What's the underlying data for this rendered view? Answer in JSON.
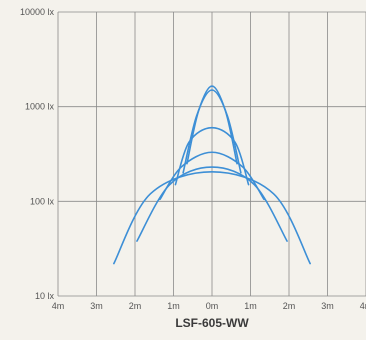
{
  "chart_data": {
    "type": "line",
    "title": "LSF-605-WW",
    "xlabel": "",
    "ylabel": "",
    "x_ticks": [
      "4m",
      "3m",
      "2m",
      "1m",
      "0m",
      "1m",
      "2m",
      "3m",
      "4m"
    ],
    "x_tick_values": [
      -4,
      -3,
      -2,
      -1,
      0,
      1,
      2,
      3,
      4
    ],
    "y_ticks": [
      "10000 lx",
      "1000 lx",
      "100 lx",
      "10 lx"
    ],
    "y_tick_values": [
      10000,
      1000,
      100,
      10
    ],
    "xlim": [
      -4,
      4
    ],
    "ylim": [
      10,
      10000
    ],
    "y_scale": "log",
    "grid": true,
    "line_color": "#3d8fd6",
    "grid_color": "#8a8a8a",
    "series": [
      {
        "values": [
          [
            -0.65,
            250
          ],
          [
            -0.35,
            900
          ],
          [
            0,
            1650
          ],
          [
            0.35,
            900
          ],
          [
            0.65,
            250
          ]
        ]
      },
      {
        "values": [
          [
            -0.75,
            200
          ],
          [
            -0.4,
            800
          ],
          [
            0,
            1500
          ],
          [
            0.4,
            800
          ],
          [
            0.75,
            200
          ]
        ]
      },
      {
        "values": [
          [
            -0.95,
            150
          ],
          [
            -0.6,
            420
          ],
          [
            0,
            600
          ],
          [
            0.6,
            420
          ],
          [
            0.95,
            150
          ]
        ]
      },
      {
        "values": [
          [
            -1.35,
            105
          ],
          [
            -0.8,
            230
          ],
          [
            0,
            330
          ],
          [
            0.8,
            230
          ],
          [
            1.35,
            105
          ]
        ]
      },
      {
        "values": [
          [
            -1.95,
            38
          ],
          [
            -1.1,
            150
          ],
          [
            0,
            230
          ],
          [
            1.1,
            150
          ],
          [
            1.95,
            38
          ]
        ]
      },
      {
        "values": [
          [
            -2.55,
            22
          ],
          [
            -1.6,
            120
          ],
          [
            0,
            205
          ],
          [
            1.6,
            120
          ],
          [
            2.55,
            22
          ]
        ]
      }
    ]
  }
}
